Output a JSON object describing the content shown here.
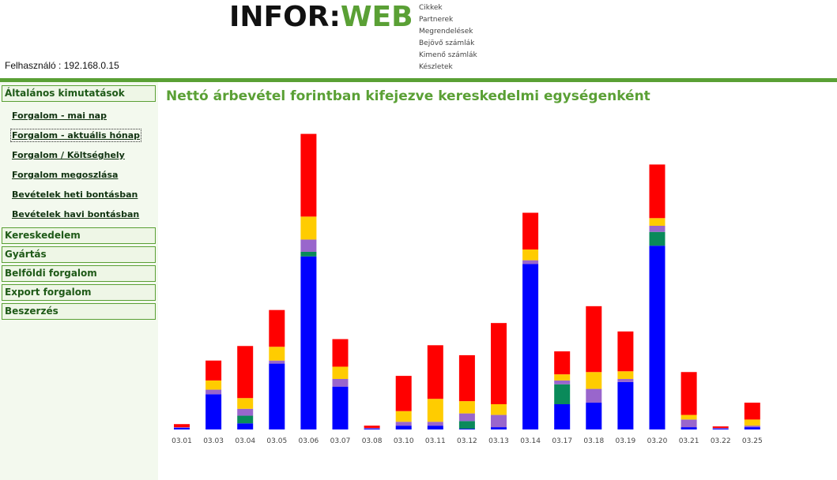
{
  "header": {
    "logo_left": "INFOR:",
    "logo_right": "WEB",
    "menu": [
      "Cikkek",
      "Partnerek",
      "Megrendelések",
      "Bejövő számlák",
      "Kimenő számlák",
      "Készletek"
    ],
    "user_label": "Felhasználó : 192.168.0.15"
  },
  "sidebar": {
    "sections": [
      {
        "label": "Általános kimutatások",
        "items": [
          {
            "label": "Forgalom - mai nap",
            "active": false
          },
          {
            "label": "Forgalom - aktuális hónap",
            "active": true
          },
          {
            "label": "Forgalom / Költséghely",
            "active": false
          },
          {
            "label": "Forgalom megoszlása",
            "active": false
          },
          {
            "label": "Bevételek heti bontásban",
            "active": false
          },
          {
            "label": "Bevételek havi bontásban",
            "active": false
          }
        ]
      },
      {
        "label": "Kereskedelem"
      },
      {
        "label": "Gyártás"
      },
      {
        "label": "Belföldi forgalom"
      },
      {
        "label": "Export forgalom"
      },
      {
        "label": "Beszerzés"
      }
    ]
  },
  "colors": {
    "accent": "#5aa035",
    "series": [
      "#0000ff",
      "#0a8a5a",
      "#9966cc",
      "#ffcc00",
      "#ff0000"
    ]
  },
  "chart_data": {
    "type": "bar",
    "stacked": true,
    "title": "Nettó árbevétel forintban kifejezve kereskedelmi egységenként",
    "categories": [
      "03.01",
      "03.03",
      "03.04",
      "03.05",
      "03.06",
      "03.07",
      "03.08",
      "03.10",
      "03.11",
      "03.12",
      "03.13",
      "03.14",
      "03.17",
      "03.18",
      "03.19",
      "03.20",
      "03.21",
      "03.22",
      "03.25"
    ],
    "ylim": [
      0,
      400
    ],
    "grid": false,
    "legend": "none",
    "series": [
      {
        "values": [
          2,
          46,
          8,
          86,
          226,
          56,
          1,
          5,
          5,
          1,
          3,
          216,
          33,
          35,
          62,
          240,
          3,
          1,
          3
        ]
      },
      {
        "values": [
          0,
          0,
          10,
          0,
          6,
          0,
          0,
          0,
          0,
          10,
          0,
          0,
          26,
          0,
          0,
          18,
          0,
          0,
          0
        ]
      },
      {
        "values": [
          1,
          6,
          9,
          4,
          16,
          10,
          1,
          5,
          5,
          10,
          16,
          5,
          5,
          18,
          4,
          8,
          10,
          1,
          2
        ]
      },
      {
        "values": [
          0,
          12,
          14,
          18,
          30,
          16,
          0,
          14,
          30,
          16,
          14,
          14,
          8,
          22,
          10,
          10,
          6,
          0,
          8
        ]
      },
      {
        "values": [
          4,
          26,
          68,
          48,
          108,
          36,
          3,
          46,
          70,
          60,
          106,
          48,
          30,
          86,
          52,
          70,
          56,
          2,
          22
        ]
      }
    ]
  }
}
